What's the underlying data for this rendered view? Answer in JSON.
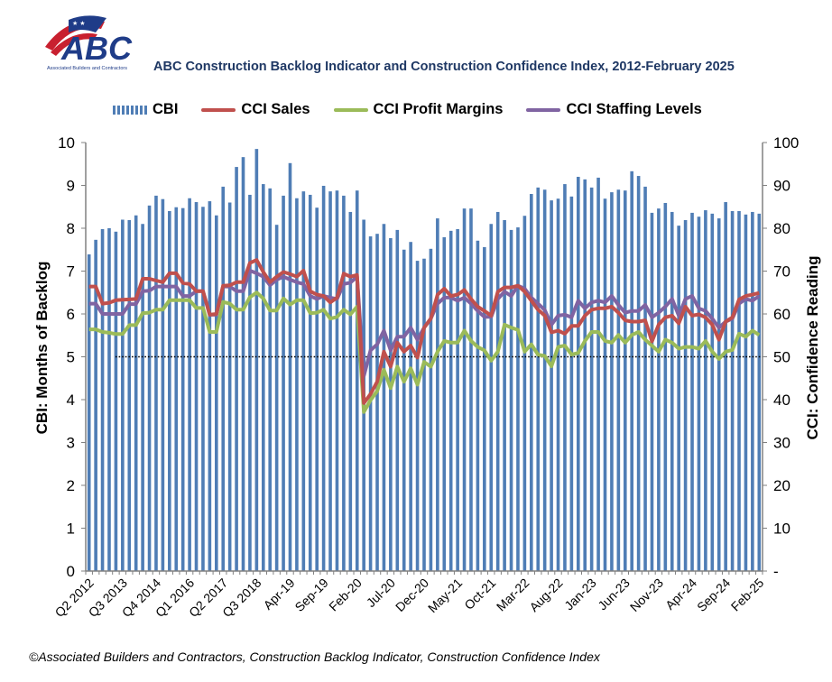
{
  "logo": {
    "text": "ABC",
    "subtext": "Associated Builders and Contractors"
  },
  "title": "ABC Construction Backlog Indicator and Construction Confidence Index, 2012-February 2025",
  "footer": "©Associated Builders and Contractors, Construction Backlog Indicator, Construction Confidence Index",
  "colors": {
    "cbi": "#4f7db5",
    "sales": "#c0504d",
    "profit": "#9bbb59",
    "staffing": "#8064a2",
    "title": "#1f3864"
  },
  "chart_data": {
    "type": "bar+line",
    "title": "ABC Construction Backlog Indicator and Construction Confidence Index, 2012-February 2025",
    "legend_position": "top",
    "grid": false,
    "ylabel": "CBI: Months of Backlog",
    "y2label": "CCI: Confidence Reading",
    "ylim": [
      0,
      10
    ],
    "y2lim": [
      0,
      100
    ],
    "yticks": [
      "0",
      "1",
      "2",
      "3",
      "4",
      "5",
      "6",
      "7",
      "8",
      "9",
      "10"
    ],
    "y2ticks": [
      "-",
      "10",
      "20",
      "30",
      "40",
      "50",
      "60",
      "70",
      "80",
      "90",
      "100"
    ],
    "reference_line": {
      "axis": "y2",
      "value": 50,
      "style": "dotted"
    },
    "xtick_labels": [
      "Q2 2012",
      "Q3 2013",
      "Q4 2014",
      "Q1 2016",
      "Q2 2017",
      "Q3 2018",
      "Apr-19",
      "Sep-19",
      "Feb-20",
      "Jul-20",
      "Dec-20",
      "May-21",
      "Oct-21",
      "Mar-22",
      "Aug-22",
      "Jan-23",
      "Jun-23",
      "Nov-23",
      "Apr-24",
      "Sep-24",
      "Feb-25"
    ],
    "xtick_every": 5,
    "x_first": "Q2 2012",
    "x_last": "Feb-25",
    "series": [
      {
        "name": "CBI",
        "type": "bar",
        "axis": "y",
        "values": [
          7.39,
          7.73,
          7.98,
          8.0,
          7.92,
          8.2,
          8.19,
          8.3,
          8.1,
          8.53,
          8.76,
          8.68,
          8.4,
          8.49,
          8.47,
          8.7,
          8.61,
          8.5,
          8.63,
          8.3,
          8.97,
          8.6,
          9.43,
          9.66,
          8.78,
          9.85,
          9.03,
          8.93,
          8.08,
          8.76,
          9.52,
          8.7,
          8.86,
          8.78,
          8.48,
          8.99,
          8.86,
          8.88,
          8.76,
          8.38,
          8.88,
          8.2,
          7.81,
          7.87,
          8.1,
          7.77,
          7.96,
          7.5,
          7.68,
          7.24,
          7.29,
          7.52,
          8.23,
          7.79,
          7.94,
          7.98,
          8.46,
          8.46,
          7.71,
          7.56,
          8.1,
          8.38,
          8.19,
          7.96,
          8.02,
          8.29,
          8.8,
          8.95,
          8.9,
          8.65,
          8.69,
          9.03,
          8.74,
          9.2,
          9.14,
          8.95,
          9.18,
          8.69,
          8.84,
          8.9,
          8.88,
          9.33,
          9.22,
          8.97,
          8.36,
          8.46,
          8.59,
          8.38,
          8.06,
          8.19,
          8.36,
          8.27,
          8.42,
          8.34,
          8.23,
          8.61,
          8.4,
          8.4,
          8.32,
          8.38,
          8.34
        ]
      },
      {
        "name": "CCI Sales",
        "type": "line",
        "axis": "y2",
        "values": [
          66.4,
          66.4,
          62.4,
          62.6,
          63.2,
          63.3,
          63.4,
          63.5,
          68.2,
          68.2,
          67.8,
          67.4,
          69.5,
          69.5,
          67.2,
          67.0,
          65.3,
          65.3,
          59.8,
          60.0,
          66.6,
          66.7,
          67.4,
          67.4,
          71.9,
          72.6,
          69.8,
          67.4,
          68.7,
          69.8,
          69.3,
          68.7,
          70.1,
          65.3,
          64.5,
          64.2,
          62.7,
          63.8,
          69.4,
          68.7,
          69.1,
          39.2,
          41.3,
          44.2,
          51.2,
          47.7,
          53.3,
          51.2,
          52.6,
          49.8,
          56.8,
          58.9,
          64.5,
          65.9,
          64.2,
          64.5,
          65.6,
          63.5,
          61.7,
          60.7,
          59.6,
          65.2,
          66.2,
          66.2,
          66.6,
          65.2,
          63.1,
          61.0,
          59.6,
          55.7,
          56.1,
          55.4,
          57.2,
          57.2,
          59.6,
          61,
          61.3,
          61.3,
          61.7,
          60.3,
          58.5,
          58.2,
          58.2,
          58.5,
          53.6,
          57.5,
          59.2,
          59.6,
          57.8,
          61.7,
          59.6,
          59.9,
          59.2,
          57.5,
          54,
          58.2,
          59.2,
          63.4,
          64.2,
          64.5,
          64.9
        ]
      },
      {
        "name": "CCI Profit Margins",
        "type": "line",
        "axis": "y2",
        "values": [
          56.4,
          56.4,
          55.8,
          55.6,
          55.3,
          55.3,
          57.4,
          57.4,
          60.2,
          60.3,
          61,
          61,
          63.2,
          63.2,
          63.2,
          63.2,
          61.4,
          61.4,
          55.8,
          55.8,
          62.8,
          62.4,
          61,
          61,
          63.9,
          65,
          63.6,
          60.8,
          60.8,
          63.6,
          62.2,
          63.2,
          63.2,
          60.2,
          60.3,
          61,
          58.9,
          59.3,
          61,
          59.9,
          61.7,
          37.1,
          39.9,
          42,
          47,
          42.7,
          47.7,
          44.2,
          47.3,
          43.5,
          48.8,
          47.7,
          51.2,
          53.7,
          53.3,
          53.3,
          56.1,
          53.7,
          52.3,
          51.5,
          49.1,
          51.2,
          57.5,
          56.8,
          56.3,
          51.2,
          52.9,
          50.5,
          50.2,
          47.8,
          52.3,
          52.6,
          50.5,
          50.9,
          53.7,
          55.8,
          55.8,
          53.7,
          53.3,
          55.1,
          53.3,
          55.1,
          55.8,
          54,
          52.6,
          51.2,
          54,
          53.3,
          51.9,
          52.3,
          52.3,
          51.9,
          53.7,
          51.2,
          49.5,
          51.2,
          51.6,
          55.4,
          54.7,
          56.1,
          55.1
        ]
      },
      {
        "name": "CCI Staffing Levels",
        "type": "line",
        "axis": "y2",
        "values": [
          62.4,
          62.4,
          60,
          60,
          60,
          60,
          62.3,
          62.3,
          65.3,
          65.4,
          66.4,
          66.4,
          66.4,
          66.4,
          64.2,
          64.2,
          65.3,
          65.3,
          59.8,
          59.8,
          66.4,
          66.4,
          65.3,
          65.3,
          70.1,
          69.5,
          68.7,
          66.7,
          68,
          68.7,
          68,
          67.4,
          67,
          64.2,
          63.5,
          64.2,
          63.8,
          63.5,
          67,
          67.3,
          68.7,
          45.5,
          51.5,
          52.9,
          56.1,
          51.5,
          54.7,
          54.7,
          56.8,
          54,
          56.8,
          58.9,
          62.4,
          63.8,
          63.8,
          63.1,
          63.8,
          62.4,
          60.7,
          59.3,
          59.3,
          63.5,
          65.2,
          64.2,
          66.6,
          65.9,
          63.8,
          62.4,
          60.9,
          57.5,
          59.6,
          59.8,
          59.2,
          63.1,
          61.3,
          62.7,
          63.1,
          62.7,
          64.2,
          62.1,
          60.3,
          60.7,
          60.7,
          62.1,
          59.2,
          60.3,
          61.7,
          63.5,
          59.6,
          63.5,
          64.2,
          61.3,
          60.7,
          58.9,
          56.8,
          58.2,
          58.9,
          62.4,
          63.5,
          63.1,
          64.2
        ]
      }
    ]
  }
}
